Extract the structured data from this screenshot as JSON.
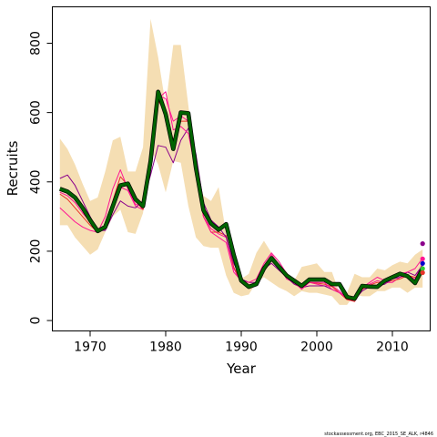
{
  "credit": "stockassessment.org, EBC_2015_SE_ALK, r4846",
  "chart_data": {
    "type": "line",
    "xlabel": "Year",
    "ylabel": "Recruits",
    "xlim": [
      1965,
      2015
    ],
    "ylim": [
      -30,
      905
    ],
    "xticks": [
      1970,
      1980,
      1990,
      2000,
      2010
    ],
    "yticks": [
      0,
      200,
      400,
      600,
      800
    ],
    "x": [
      1966,
      1967,
      1968,
      1969,
      1970,
      1971,
      1972,
      1973,
      1974,
      1975,
      1976,
      1977,
      1978,
      1979,
      1980,
      1981,
      1982,
      1983,
      1984,
      1985,
      1986,
      1987,
      1988,
      1989,
      1990,
      1991,
      1992,
      1993,
      1994,
      1995,
      1996,
      1997,
      1998,
      1999,
      2000,
      2001,
      2002,
      2003,
      2004,
      2005,
      2006,
      2007,
      2008,
      2009,
      2010,
      2011,
      2012,
      2013,
      2014
    ],
    "band": {
      "color": "#f5deb3",
      "upper": [
        525,
        495,
        450,
        395,
        345,
        355,
        430,
        520,
        530,
        430,
        430,
        500,
        870,
        760,
        620,
        795,
        795,
        620,
        430,
        360,
        345,
        385,
        250,
        140,
        120,
        135,
        195,
        230,
        195,
        165,
        140,
        115,
        155,
        160,
        165,
        140,
        140,
        80,
        80,
        135,
        125,
        125,
        150,
        145,
        160,
        170,
        165,
        190,
        205
      ],
      "lower": [
        275,
        275,
        240,
        215,
        190,
        205,
        255,
        300,
        320,
        255,
        250,
        310,
        495,
        450,
        370,
        460,
        455,
        330,
        240,
        215,
        210,
        210,
        130,
        80,
        70,
        75,
        110,
        125,
        110,
        95,
        85,
        70,
        85,
        80,
        80,
        75,
        70,
        45,
        45,
        75,
        70,
        70,
        85,
        85,
        95,
        95,
        80,
        95,
        95
      ]
    },
    "series": [
      {
        "color": "#006400",
        "width": 3.2,
        "values": [
          380,
          372,
          355,
          325,
          290,
          258,
          270,
          330,
          390,
          395,
          350,
          330,
          460,
          660,
          595,
          495,
          600,
          598,
          440,
          318,
          280,
          262,
          278,
          190,
          115,
          97,
          105,
          150,
          180,
          155,
          130,
          115,
          100,
          118,
          118,
          118,
          105,
          105,
          68,
          63,
          100,
          98,
          97,
          115,
          125,
          135,
          128,
          108,
          150
        ]
      },
      {
        "color": "#ff1493",
        "width": 1,
        "values": [
          370,
          360,
          340,
          310,
          285,
          255,
          275,
          330,
          385,
          375,
          330,
          320,
          455,
          650,
          640,
          575,
          590,
          575,
          430,
          300,
          265,
          250,
          240,
          150,
          110,
          100,
          105,
          145,
          190,
          160,
          120,
          110,
          95,
          110,
          105,
          100,
          100,
          85,
          62,
          55,
          90,
          105,
          115,
          110,
          110,
          125,
          130,
          120,
          165
        ]
      },
      {
        "color": "#e8342a",
        "width": 1,
        "values": [
          365,
          350,
          325,
          300,
          275,
          255,
          265,
          345,
          415,
          390,
          345,
          320,
          450,
          635,
          600,
          520,
          575,
          575,
          430,
          300,
          255,
          255,
          245,
          155,
          110,
          100,
          105,
          145,
          180,
          160,
          125,
          105,
          95,
          110,
          108,
          105,
          98,
          80,
          60,
          55,
          90,
          102,
          110,
          110,
          115,
          120,
          130,
          125,
          135
        ]
      },
      {
        "color": "#8b008b",
        "width": 1,
        "values": [
          410,
          420,
          390,
          345,
          300,
          260,
          260,
          305,
          345,
          330,
          325,
          345,
          420,
          505,
          500,
          455,
          520,
          555,
          480,
          340,
          290,
          270,
          240,
          165,
          120,
          110,
          110,
          150,
          165,
          145,
          125,
          105,
          95,
          100,
          100,
          100,
          90,
          80,
          65,
          60,
          85,
          98,
          100,
          105,
          120,
          125,
          140,
          130,
          160
        ]
      },
      {
        "color": "#ff1493",
        "width": 1,
        "values": [
          325,
          305,
          285,
          270,
          260,
          255,
          300,
          380,
          435,
          380,
          335,
          330,
          445,
          640,
          660,
          550,
          560,
          540,
          430,
          300,
          255,
          240,
          225,
          140,
          115,
          110,
          120,
          165,
          195,
          170,
          135,
          110,
          90,
          110,
          110,
          110,
          90,
          80,
          65,
          60,
          95,
          110,
          125,
          115,
          125,
          135,
          140,
          150,
          180
        ]
      }
    ],
    "endpoints": [
      {
        "color": "#8b008b",
        "y": 222
      },
      {
        "color": "#ff1493",
        "y": 178
      },
      {
        "color": "#0000cd",
        "y": 165
      },
      {
        "color": "#32cd32",
        "y": 150
      },
      {
        "color": "#e8342a",
        "y": 138
      }
    ]
  }
}
